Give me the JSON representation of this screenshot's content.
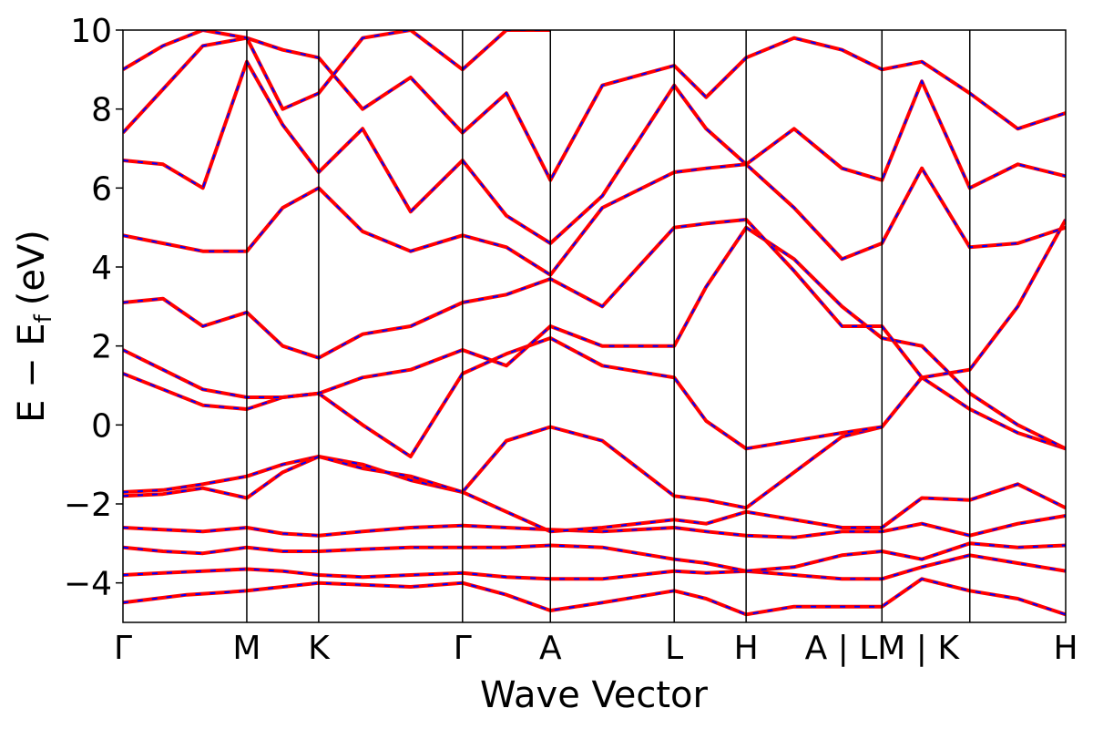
{
  "chart_data": {
    "type": "line",
    "xlabel": "Wave Vector",
    "ylabel_main": "E − E",
    "ylabel_sub": "f",
    "ylabel_unit": "(eV)",
    "ylim": [
      -5,
      10
    ],
    "yticks": [
      -4,
      -2,
      0,
      2,
      4,
      6,
      8,
      10
    ],
    "ytick_labels": [
      "−4",
      "−2",
      "0",
      "2",
      "4",
      "6",
      "8",
      "10"
    ],
    "xlim": [
      0,
      11.8
    ],
    "kpoint_lines": [
      1.55,
      2.45,
      4.25,
      5.35,
      6.9,
      7.8,
      9.5,
      10.6
    ],
    "kpoint_labels": [
      {
        "x": 0.0,
        "label": "Γ"
      },
      {
        "x": 1.55,
        "label": "M"
      },
      {
        "x": 2.45,
        "label": "K"
      },
      {
        "x": 4.25,
        "label": "Γ"
      },
      {
        "x": 5.35,
        "label": "A"
      },
      {
        "x": 6.9,
        "label": "L"
      },
      {
        "x": 7.8,
        "label": "H"
      },
      {
        "x": 9.5,
        "label": "A | LM | K"
      },
      {
        "x": 11.8,
        "label": "H"
      }
    ],
    "colors": {
      "band_primary": "#ff0000",
      "band_overlay": "#0000ff",
      "axis": "#000000"
    },
    "series": [
      {
        "values_x": [
          0,
          0.4,
          0.8,
          1.2,
          1.55,
          2.0,
          2.45,
          3.0,
          3.6,
          4.25,
          4.8,
          5.35,
          6.0,
          6.9,
          7.3,
          7.8,
          8.4,
          9.0,
          9.5,
          10.0,
          10.6,
          11.2,
          11.8
        ],
        "values_y": [
          -4.5,
          -4.4,
          -4.3,
          -4.25,
          -4.2,
          -4.1,
          -4.0,
          -4.05,
          -4.1,
          -4.0,
          -4.3,
          -4.7,
          -4.5,
          -4.2,
          -4.4,
          -4.8,
          -4.6,
          -4.6,
          -4.6,
          -3.9,
          -4.2,
          -4.4,
          -4.8
        ]
      },
      {
        "values_x": [
          0,
          0.5,
          1.0,
          1.55,
          2.0,
          2.45,
          3.0,
          3.6,
          4.25,
          4.8,
          5.35,
          6.0,
          6.9,
          7.3,
          7.8,
          8.4,
          9.0,
          9.5,
          10.0,
          10.6,
          11.2,
          11.8
        ],
        "values_y": [
          -3.8,
          -3.75,
          -3.7,
          -3.65,
          -3.7,
          -3.8,
          -3.85,
          -3.8,
          -3.75,
          -3.85,
          -3.9,
          -3.9,
          -3.7,
          -3.75,
          -3.7,
          -3.8,
          -3.9,
          -3.9,
          -3.6,
          -3.3,
          -3.5,
          -3.7
        ]
      },
      {
        "values_x": [
          0,
          0.5,
          1.0,
          1.55,
          2.0,
          2.45,
          3.0,
          3.6,
          4.25,
          4.8,
          5.35,
          6.0,
          6.9,
          7.3,
          7.8,
          8.4,
          9.0,
          9.5,
          10.0,
          10.6,
          11.2,
          11.8
        ],
        "values_y": [
          -3.1,
          -3.2,
          -3.25,
          -3.1,
          -3.2,
          -3.2,
          -3.15,
          -3.1,
          -3.1,
          -3.1,
          -3.05,
          -3.1,
          -3.4,
          -3.5,
          -3.7,
          -3.6,
          -3.3,
          -3.2,
          -3.4,
          -3.0,
          -3.1,
          -3.05
        ]
      },
      {
        "values_x": [
          0,
          0.5,
          1.0,
          1.55,
          2.0,
          2.45,
          3.0,
          3.6,
          4.25,
          4.8,
          5.35,
          6.0,
          6.9,
          7.3,
          7.8,
          8.4,
          9.0,
          9.5,
          10.0,
          10.6,
          11.2,
          11.8
        ],
        "values_y": [
          -2.6,
          -2.65,
          -2.7,
          -2.6,
          -2.75,
          -2.8,
          -2.7,
          -2.6,
          -2.55,
          -2.6,
          -2.65,
          -2.7,
          -2.6,
          -2.7,
          -2.8,
          -2.85,
          -2.7,
          -2.7,
          -2.5,
          -2.8,
          -2.5,
          -2.3
        ]
      },
      {
        "values_x": [
          0,
          0.5,
          1.0,
          1.55,
          2.0,
          2.45,
          3.0,
          3.6,
          4.25,
          4.8,
          5.35,
          6.0,
          6.9,
          7.3,
          7.8,
          8.4,
          9.0,
          9.5
        ],
        "values_y": [
          -1.7,
          -1.65,
          -1.5,
          -1.3,
          -1.0,
          -0.8,
          -1.0,
          -1.4,
          -1.7,
          -0.4,
          -0.05,
          -0.4,
          -1.8,
          -1.9,
          -2.1,
          -1.2,
          -0.3,
          -0.05
        ]
      },
      {
        "values_x": [
          0,
          0.5,
          1.0,
          1.55,
          2.0,
          2.45,
          3.0,
          3.6,
          4.25,
          4.8,
          5.35,
          6.0,
          6.9,
          7.3,
          7.8,
          8.4,
          9.0,
          9.5,
          10.0,
          10.6,
          11.2,
          11.8
        ],
        "values_y": [
          -1.8,
          -1.75,
          -1.6,
          -1.85,
          -1.2,
          -0.8,
          -1.1,
          -1.3,
          -1.7,
          -2.2,
          -2.7,
          -2.6,
          -2.4,
          -2.5,
          -2.2,
          -2.4,
          -2.6,
          -2.6,
          -1.85,
          -1.9,
          -1.5,
          -2.1
        ]
      },
      {
        "values_x": [
          0,
          0.5,
          1.0,
          1.55,
          2.0,
          2.45,
          3.0,
          3.6,
          4.25,
          4.8,
          5.35,
          6.0,
          6.9,
          7.3,
          7.8,
          8.4,
          9.0,
          9.5,
          10.0,
          10.6,
          11.2,
          11.8
        ],
        "values_y": [
          1.3,
          0.9,
          0.5,
          0.4,
          0.7,
          0.8,
          0.0,
          -0.8,
          1.3,
          1.8,
          2.2,
          1.5,
          1.2,
          0.1,
          -0.6,
          -0.4,
          -0.2,
          -0.05,
          1.2,
          0.4,
          -0.2,
          -0.6
        ]
      },
      {
        "values_x": [
          0,
          0.5,
          1.0,
          1.55,
          2.0,
          2.45,
          3.0,
          3.6,
          4.25,
          4.8,
          5.35,
          6.0,
          6.9,
          7.3,
          7.8,
          8.4,
          9.0,
          9.5,
          10.0,
          10.6,
          11.2,
          11.8
        ],
        "values_y": [
          1.9,
          1.4,
          0.9,
          0.7,
          0.7,
          0.8,
          1.2,
          1.4,
          1.9,
          1.5,
          2.5,
          2.0,
          2.0,
          3.5,
          5.0,
          4.2,
          3.0,
          2.2,
          2.0,
          0.8,
          0.0,
          -0.6
        ]
      },
      {
        "values_x": [
          0,
          0.5,
          1.0,
          1.55,
          2.0,
          2.45,
          3.0,
          3.6,
          4.25,
          4.8,
          5.35,
          6.0,
          6.9,
          7.3,
          7.8,
          8.4,
          9.0,
          9.5,
          10.0,
          10.6,
          11.2,
          11.8
        ],
        "values_y": [
          3.1,
          3.2,
          2.5,
          2.85,
          2.0,
          1.7,
          2.3,
          2.5,
          3.1,
          3.3,
          3.7,
          3.0,
          5.0,
          5.1,
          5.2,
          3.9,
          2.5,
          2.5,
          1.2,
          1.4,
          3.0,
          5.2
        ]
      },
      {
        "values_x": [
          0,
          0.5,
          1.0,
          1.55,
          2.0,
          2.45,
          3.0,
          3.6,
          4.25,
          4.8,
          5.35,
          6.0,
          6.9,
          7.3,
          7.8,
          8.4,
          9.0,
          9.5,
          10.0,
          10.6,
          11.2,
          11.8
        ],
        "values_y": [
          4.8,
          4.6,
          4.4,
          4.4,
          5.5,
          6.0,
          4.9,
          4.4,
          4.8,
          4.5,
          3.8,
          5.5,
          6.4,
          6.5,
          6.6,
          5.5,
          4.2,
          4.6,
          6.5,
          4.5,
          4.6,
          5.0
        ]
      },
      {
        "values_x": [
          0,
          0.5,
          1.0,
          1.55,
          2.0,
          2.45,
          3.0,
          3.6,
          4.25,
          4.8,
          5.35,
          6.0,
          6.9,
          7.3,
          7.8,
          8.4,
          9.0,
          9.5,
          10.0,
          10.6,
          11.2,
          11.8
        ],
        "values_y": [
          6.7,
          6.6,
          6.0,
          9.2,
          7.6,
          6.4,
          7.5,
          5.4,
          6.7,
          5.3,
          4.6,
          5.8,
          8.6,
          7.5,
          6.6,
          7.5,
          6.5,
          6.2,
          8.7,
          6.0,
          6.6,
          6.3
        ]
      },
      {
        "values_x": [
          0,
          0.5,
          1.0,
          1.55,
          2.0,
          2.45,
          3.0,
          3.6,
          4.25,
          4.8,
          5.35,
          6.0,
          6.9,
          7.3,
          7.8,
          8.4,
          9.0,
          9.5,
          10.0,
          10.6,
          11.2,
          11.8
        ],
        "values_y": [
          7.4,
          8.5,
          9.6,
          9.8,
          9.5,
          9.3,
          8.0,
          8.8,
          7.4,
          8.4,
          6.2,
          8.6,
          9.1,
          8.3,
          9.3,
          9.8,
          9.5,
          9.0,
          9.2,
          8.4,
          7.5,
          7.9
        ]
      },
      {
        "values_x": [
          0,
          0.5,
          1.0,
          1.55,
          2.0,
          2.45,
          3.0,
          3.6,
          4.25,
          4.8,
          5.35
        ],
        "values_y": [
          9.0,
          9.6,
          10.0,
          9.8,
          8.0,
          8.4,
          9.8,
          10.0,
          9.0,
          10.0,
          10.0
        ]
      }
    ]
  }
}
